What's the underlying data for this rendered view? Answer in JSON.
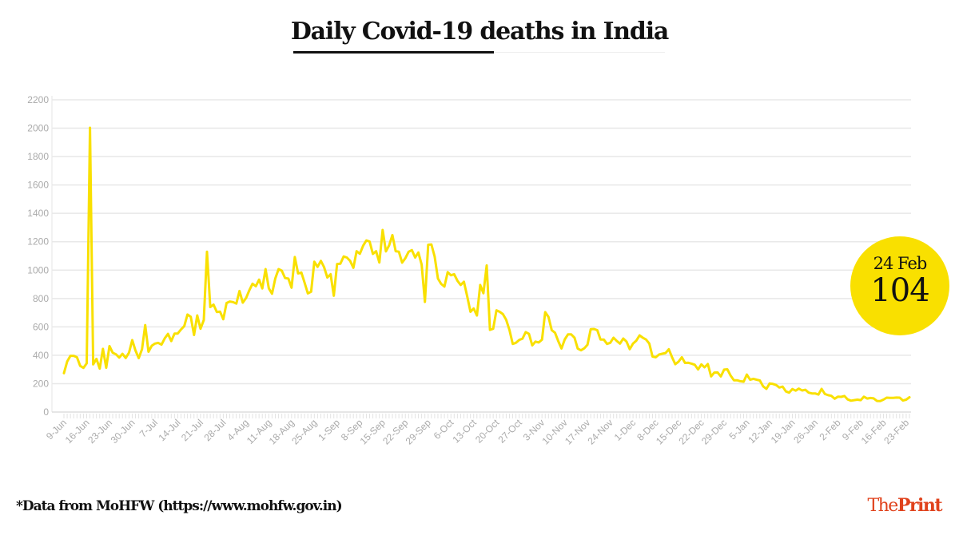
{
  "chart_data": {
    "type": "line",
    "title": "Daily Covid-19 deaths in India",
    "xlabel": "",
    "ylabel": "",
    "ylim": [
      0,
      2200
    ],
    "yticks": [
      0,
      200,
      400,
      600,
      800,
      1000,
      1200,
      1400,
      1600,
      1800,
      2000,
      2200
    ],
    "grid": true,
    "x_start": "9-Jun",
    "x_end": "24-Feb",
    "xtick_labels": [
      "9-Jun",
      "16-Jun",
      "23-Jun",
      "30-Jun",
      "7-Jul",
      "14-Jul",
      "21-Jul",
      "28-Jul",
      "4-Aug",
      "11-Aug",
      "18-Aug",
      "25-Aug",
      "1-Sep",
      "8-Sep",
      "15-Sep",
      "22-Sep",
      "29-Sep",
      "6-Oct",
      "13-Oct",
      "20-Oct",
      "27-Oct",
      "3-Nov",
      "10-Nov",
      "17-Nov",
      "24-Nov",
      "1-Dec",
      "8-Dec",
      "15-Dec",
      "22-Dec",
      "29-Dec",
      "5-Jan",
      "12-Jan",
      "19-Jan",
      "26-Jan",
      "2-Feb",
      "9-Feb",
      "16-Feb",
      "23-Feb"
    ],
    "xtick_every_days": 7,
    "line_color": "#f9e000",
    "values": [
      274,
      357,
      396,
      396,
      386,
      325,
      311,
      343,
      2003,
      336,
      375,
      306,
      445,
      312,
      465,
      418,
      407,
      384,
      410,
      381,
      418,
      507,
      434,
      380,
      442,
      613,
      425,
      467,
      482,
      487,
      475,
      519,
      551,
      500,
      553,
      553,
      582,
      606,
      687,
      671,
      543,
      681,
      587,
      648,
      1129,
      740,
      757,
      705,
      708,
      654,
      768,
      779,
      775,
      764,
      853,
      771,
      803,
      857,
      904,
      886,
      933,
      871,
      1007,
      871,
      834,
      942,
      1007,
      996,
      944,
      941,
      876,
      1092,
      977,
      983,
      912,
      836,
      848,
      1059,
      1023,
      1065,
      1021,
      948,
      971,
      819,
      1043,
      1045,
      1096,
      1089,
      1065,
      1016,
      1133,
      1115,
      1172,
      1209,
      1201,
      1114,
      1133,
      1054,
      1283,
      1132,
      1174,
      1247,
      1133,
      1130,
      1053,
      1085,
      1129,
      1141,
      1089,
      1124,
      1039,
      776,
      1179,
      1181,
      1095,
      940,
      903,
      884,
      986,
      964,
      971,
      925,
      895,
      918,
      816,
      706,
      730,
      680,
      895,
      837,
      1033,
      579,
      587,
      717,
      706,
      690,
      650,
      578,
      480,
      488,
      508,
      517,
      563,
      551,
      470,
      496,
      490,
      510,
      704,
      670,
      577,
      559,
      500,
      448,
      512,
      547,
      547,
      524,
      447,
      435,
      449,
      474,
      584,
      585,
      577,
      511,
      511,
      480,
      488,
      524,
      501,
      482,
      518,
      496,
      443,
      482,
      503,
      540,
      524,
      511,
      482,
      391,
      386,
      405,
      411,
      416,
      442,
      387,
      337,
      355,
      386,
      346,
      347,
      341,
      333,
      300,
      336,
      315,
      338,
      251,
      278,
      279,
      251,
      299,
      301,
      257,
      224,
      224,
      217,
      214,
      264,
      228,
      234,
      228,
      222,
      181,
      163,
      201,
      198,
      190,
      173,
      179,
      145,
      137,
      162,
      151,
      165,
      152,
      157,
      137,
      131,
      131,
      123,
      163,
      127,
      119,
      114,
      94,
      108,
      107,
      113,
      89,
      80,
      84,
      87,
      84,
      108,
      95,
      99,
      96,
      78,
      77,
      87,
      101,
      100,
      100,
      102,
      101,
      81,
      87,
      104
    ],
    "annotation": {
      "date": "24 Feb",
      "value": "104",
      "color": "#f9e000"
    }
  },
  "footer": {
    "source": "*Data from MoHFW (https://www.mohfw.gov.in)",
    "logo_the": "The",
    "logo_print": "Print",
    "logo_color": "#e0421c"
  }
}
